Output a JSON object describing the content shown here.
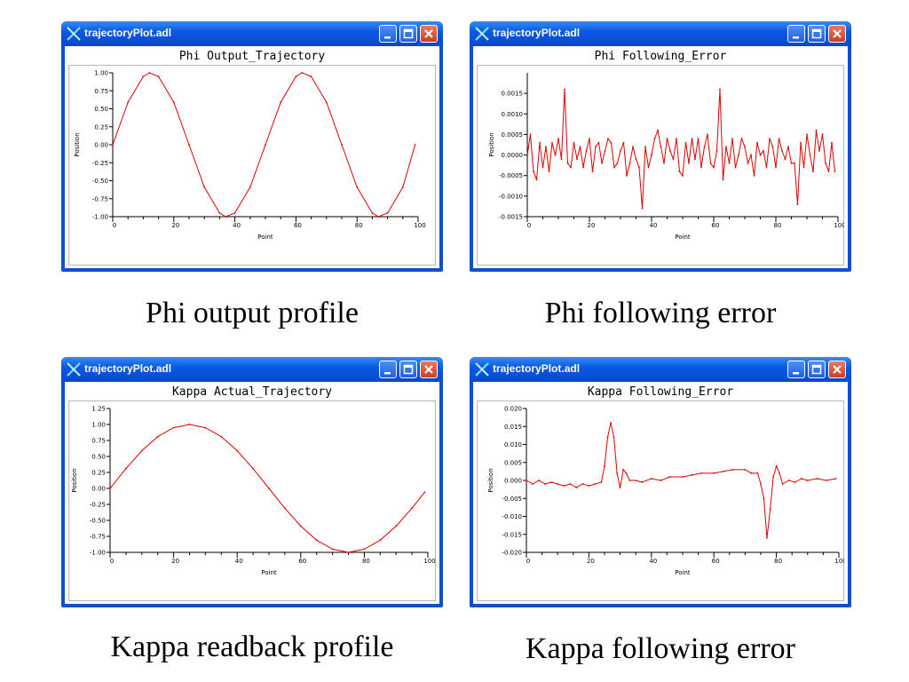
{
  "accent": "#0f4fd0",
  "plot_color": "#dd0000",
  "windows": [
    {
      "title": "trajectoryPlot.adl",
      "plot_title": "Phi Output_Trajectory",
      "caption": "Phi output profile",
      "chart_data": {
        "type": "line",
        "title": "Phi Output_Trajectory",
        "xlabel": "Point",
        "ylabel": "Position",
        "xlim": [
          0,
          100
        ],
        "ylim": [
          -1.0,
          1.0
        ],
        "xticks": [
          0,
          20,
          40,
          60,
          80,
          100
        ],
        "yticks": [
          "1.00",
          "0.75",
          "0.50",
          "0.25",
          "0.00",
          "-0.25",
          "-0.50",
          "-0.75",
          "-1.00"
        ],
        "series": [
          {
            "x": [
              0,
              5,
              10,
              12,
              15,
              20,
              25,
              30,
              35,
              37,
              40,
              45,
              50,
              55,
              60,
              62,
              65,
              70,
              75,
              80,
              85,
              87,
              90,
              95,
              99
            ],
            "y": [
              0.0,
              0.59,
              0.95,
              1.0,
              0.95,
              0.59,
              0.0,
              -0.59,
              -0.95,
              -1.0,
              -0.95,
              -0.59,
              0.0,
              0.59,
              0.95,
              1.0,
              0.95,
              0.59,
              0.0,
              -0.59,
              -0.95,
              -1.0,
              -0.95,
              -0.59,
              0.0
            ]
          }
        ]
      }
    },
    {
      "title": "trajectoryPlot.adl",
      "plot_title": "Phi Following_Error",
      "caption": "Phi following error",
      "chart_data": {
        "type": "line",
        "title": "Phi Following_Error",
        "xlabel": "Point",
        "ylabel": "Position",
        "xlim": [
          0,
          100
        ],
        "ylim": [
          -0.0015,
          0.002
        ],
        "xticks": [
          0,
          20,
          40,
          60,
          80,
          100
        ],
        "yticks": [
          "0.0015",
          "0.0010",
          "0.0005",
          "0.0000",
          "-0.0005",
          "-0.0010",
          "-0.0015"
        ],
        "series": [
          {
            "x": [
              0,
              1,
              2,
              3,
              4,
              5,
              6,
              7,
              8,
              9,
              10,
              11,
              12,
              13,
              14,
              15,
              16,
              17,
              18,
              19,
              20,
              21,
              22,
              23,
              24,
              25,
              26,
              27,
              28,
              29,
              30,
              31,
              32,
              33,
              34,
              35,
              36,
              37,
              38,
              39,
              40,
              41,
              42,
              43,
              44,
              45,
              46,
              47,
              48,
              49,
              50,
              51,
              52,
              53,
              54,
              55,
              56,
              57,
              58,
              59,
              60,
              61,
              62,
              63,
              64,
              65,
              66,
              67,
              68,
              69,
              70,
              71,
              72,
              73,
              74,
              75,
              76,
              77,
              78,
              79,
              80,
              81,
              82,
              83,
              84,
              85,
              86,
              87,
              88,
              89,
              90,
              91,
              92,
              93,
              94,
              95,
              96,
              97,
              98,
              99
            ],
            "y": [
              0.0,
              0.0005,
              -0.0004,
              -0.0006,
              0.0003,
              -0.0003,
              0.0002,
              -0.0004,
              0.0003,
              0.0,
              0.0004,
              -0.0001,
              0.0016,
              -0.0002,
              -0.0003,
              0.0003,
              -0.0001,
              0.0002,
              -0.0003,
              0.0001,
              0.0004,
              -0.0004,
              0.0002,
              0.0003,
              -0.0002,
              0.0001,
              0.0004,
              0.0003,
              -0.0003,
              -0.0002,
              0.0001,
              0.0003,
              -0.0005,
              -0.0002,
              0.0002,
              -0.0001,
              -0.0003,
              -0.0013,
              0.0002,
              -0.0003,
              0.0,
              0.0004,
              0.0006,
              0.0002,
              -0.0002,
              0.0004,
              0.0001,
              -0.0001,
              0.0004,
              -0.0004,
              -0.0005,
              0.0003,
              -0.0002,
              0.0004,
              -0.0001,
              0.0004,
              -0.0003,
              0.0002,
              0.0005,
              -0.0002,
              -0.0003,
              0.0001,
              0.0016,
              -0.0006,
              0.0002,
              -0.0002,
              0.0004,
              -0.0003,
              0.0,
              0.0004,
              0.0002,
              -0.0002,
              0.0,
              -0.0005,
              0.0003,
              0.0,
              0.0001,
              -0.0003,
              0.0004,
              0.0002,
              -0.0003,
              0.0004,
              0.0001,
              -0.0001,
              0.0002,
              -0.0002,
              -0.0002,
              -0.0012,
              0.0003,
              -0.0003,
              0.0005,
              0.0,
              -0.0004,
              0.0006,
              0.0001,
              0.0005,
              -0.0002,
              -0.0004,
              0.0003,
              -0.0004
            ]
          }
        ]
      }
    },
    {
      "title": "trajectoryPlot.adl",
      "plot_title": "Kappa Actual_Trajectory",
      "caption": "Kappa readback profile",
      "chart_data": {
        "type": "line",
        "title": "Kappa Actual_Trajectory",
        "xlabel": "Point",
        "ylabel": "Position",
        "xlim": [
          0,
          100
        ],
        "ylim": [
          -1.0,
          1.25
        ],
        "xticks": [
          0,
          20,
          40,
          60,
          80,
          100
        ],
        "yticks": [
          "1.25",
          "1.00",
          "0.75",
          "0.50",
          "0.25",
          "0.00",
          "-0.25",
          "-0.50",
          "-0.75",
          "-1.00"
        ],
        "series": [
          {
            "x": [
              0,
              5,
              10,
              15,
              20,
              25,
              30,
              35,
              40,
              45,
              50,
              55,
              60,
              65,
              70,
              75,
              80,
              85,
              90,
              95,
              99
            ],
            "y": [
              0.0,
              0.31,
              0.59,
              0.81,
              0.95,
              1.0,
              0.95,
              0.81,
              0.59,
              0.31,
              0.0,
              -0.31,
              -0.59,
              -0.81,
              -0.95,
              -1.0,
              -0.95,
              -0.81,
              -0.59,
              -0.31,
              -0.06
            ]
          }
        ]
      }
    },
    {
      "title": "trajectoryPlot.adl",
      "plot_title": "Kappa Following_Error",
      "caption": "Kappa following error",
      "chart_data": {
        "type": "line",
        "title": "Kappa Following_Error",
        "xlabel": "Point",
        "ylabel": "Position",
        "xlim": [
          0,
          100
        ],
        "ylim": [
          -0.02,
          0.02
        ],
        "xticks": [
          0,
          20,
          40,
          60,
          80,
          100
        ],
        "yticks": [
          "0.020",
          "0.015",
          "0.010",
          "0.005",
          "0.000",
          "-0.005",
          "-0.010",
          "-0.015",
          "-0.020"
        ],
        "series": [
          {
            "x": [
              0,
              2,
              4,
              6,
              8,
              10,
              12,
              14,
              16,
              18,
              20,
              22,
              24,
              25,
              26,
              27,
              28,
              29,
              30,
              31,
              32,
              33,
              35,
              37,
              40,
              43,
              46,
              50,
              53,
              56,
              60,
              63,
              66,
              70,
              72,
              74,
              75,
              76,
              77,
              78,
              79,
              80,
              81,
              82,
              84,
              86,
              88,
              90,
              93,
              96,
              99
            ],
            "y": [
              0.0,
              -0.001,
              0.0,
              -0.001,
              -0.0005,
              -0.001,
              -0.0015,
              -0.001,
              -0.002,
              -0.001,
              -0.0015,
              -0.001,
              -0.0005,
              0.004,
              0.012,
              0.016,
              0.012,
              0.002,
              -0.002,
              0.003,
              0.002,
              0.0,
              0.0,
              -0.0005,
              0.0005,
              0.0,
              0.001,
              0.001,
              0.0015,
              0.002,
              0.002,
              0.0025,
              0.003,
              0.003,
              0.002,
              0.002,
              -0.001,
              -0.005,
              -0.016,
              -0.008,
              0.001,
              0.004,
              0.002,
              -0.001,
              0.0,
              -0.0005,
              0.0005,
              0.0,
              0.0005,
              0.0,
              0.0005
            ]
          }
        ]
      }
    }
  ]
}
